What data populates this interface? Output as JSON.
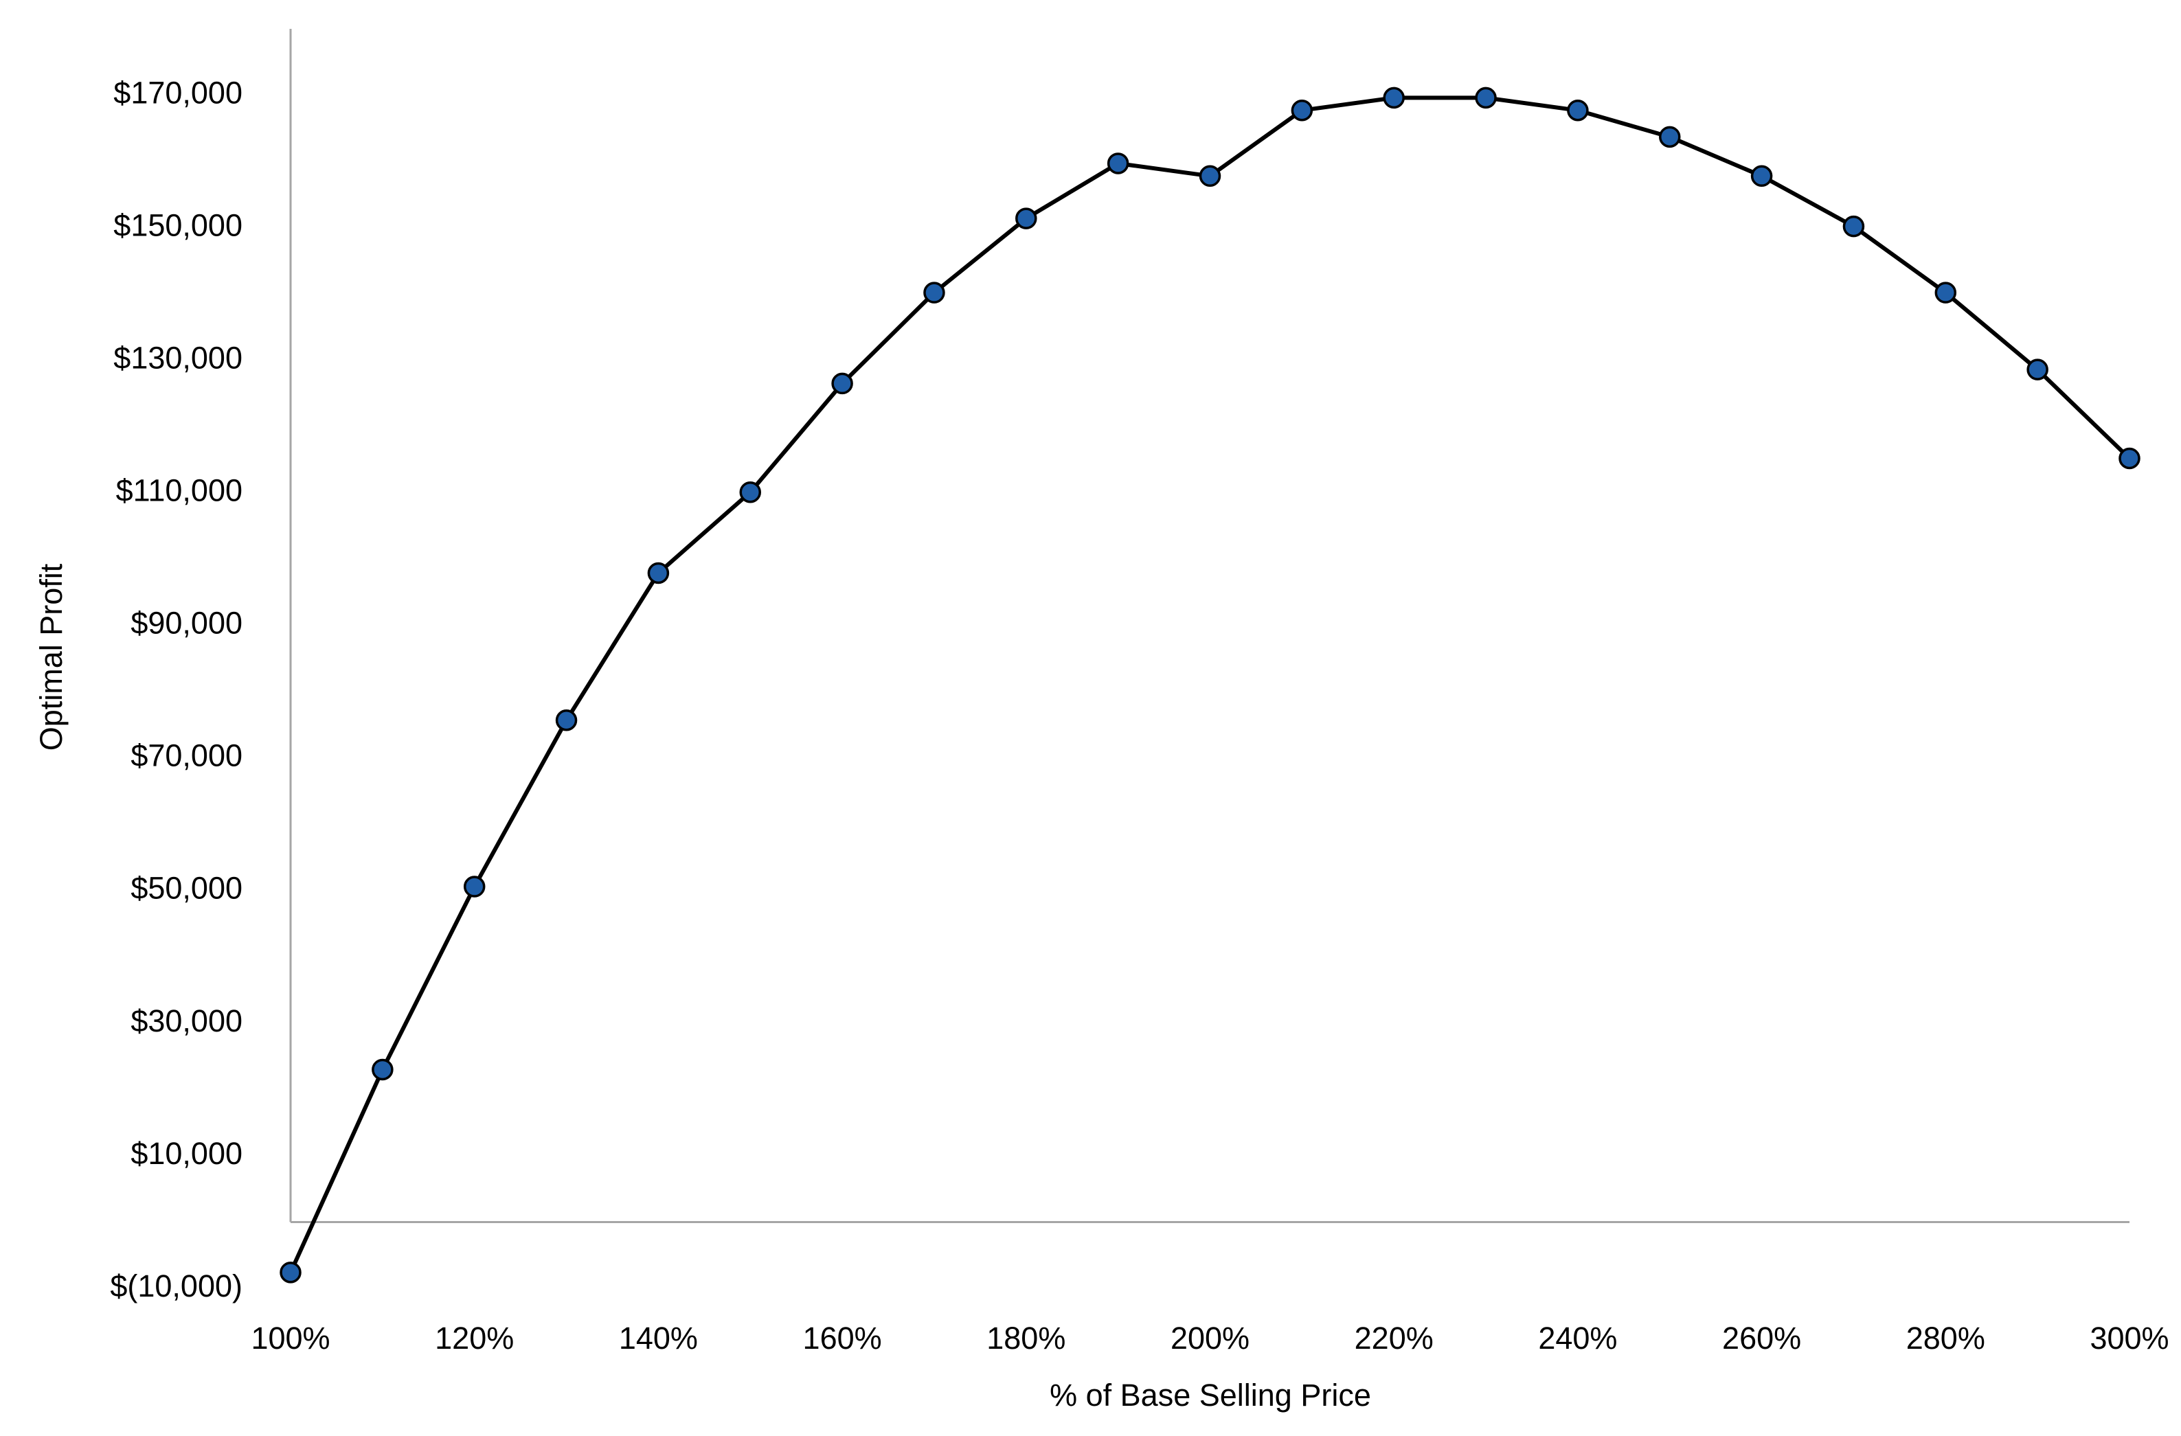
{
  "chart_data": {
    "type": "line",
    "x_label": "% of Base Selling Price",
    "y_label": "Optimal Profit",
    "x": [
      100,
      110,
      120,
      130,
      140,
      150,
      160,
      170,
      180,
      190,
      200,
      210,
      220,
      230,
      240,
      250,
      260,
      270,
      280,
      290,
      300
    ],
    "values": [
      -7600,
      23000,
      50600,
      75700,
      97900,
      110100,
      126500,
      140200,
      151400,
      159700,
      157800,
      167700,
      169600,
      169600,
      167700,
      163700,
      157800,
      150200,
      140200,
      128600,
      115200
    ],
    "color": "#000000",
    "marker_color": "#1f5ea8",
    "xlim": [
      100,
      300
    ],
    "xticks": [
      {
        "value": 100,
        "label": "100%"
      },
      {
        "value": 120,
        "label": "120%"
      },
      {
        "value": 140,
        "label": "140%"
      },
      {
        "value": 160,
        "label": "160%"
      },
      {
        "value": 180,
        "label": "180%"
      },
      {
        "value": 200,
        "label": "200%"
      },
      {
        "value": 220,
        "label": "220%"
      },
      {
        "value": 240,
        "label": "240%"
      },
      {
        "value": 260,
        "label": "260%"
      },
      {
        "value": 280,
        "label": "280%"
      },
      {
        "value": 300,
        "label": "300%"
      }
    ],
    "ylim": [
      -10000,
      180000
    ],
    "yticks": [
      {
        "value": -10000,
        "label": "$(10,000)"
      },
      {
        "value": 10000,
        "label": "$10,000"
      },
      {
        "value": 30000,
        "label": "$30,000"
      },
      {
        "value": 50000,
        "label": "$50,000"
      },
      {
        "value": 70000,
        "label": "$70,000"
      },
      {
        "value": 90000,
        "label": "$90,000"
      },
      {
        "value": 110000,
        "label": "$110,000"
      },
      {
        "value": 130000,
        "label": "$130,000"
      },
      {
        "value": 150000,
        "label": "$150,000"
      },
      {
        "value": 170000,
        "label": "$170,000"
      }
    ],
    "grid": false
  }
}
